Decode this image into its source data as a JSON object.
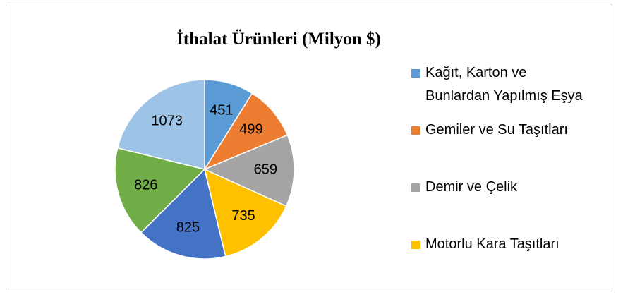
{
  "chart_data": {
    "type": "pie",
    "title": "İthalat Ürünleri (Milyon $)",
    "categories": [
      "Kağıt, Karton ve Bunlardan Yapılmış Eşya",
      "Gemiler ve Su Taşıtları",
      "Demir ve Çelik",
      "Motorlu Kara Taşıtları",
      null,
      null,
      null
    ],
    "values": [
      451,
      499,
      659,
      735,
      825,
      826,
      1073
    ],
    "colors": [
      "#5b9bd5",
      "#ed7d31",
      "#a5a5a5",
      "#ffc000",
      "#4472c4",
      "#70ad47",
      "#9dc3e6"
    ],
    "legend": "right"
  }
}
